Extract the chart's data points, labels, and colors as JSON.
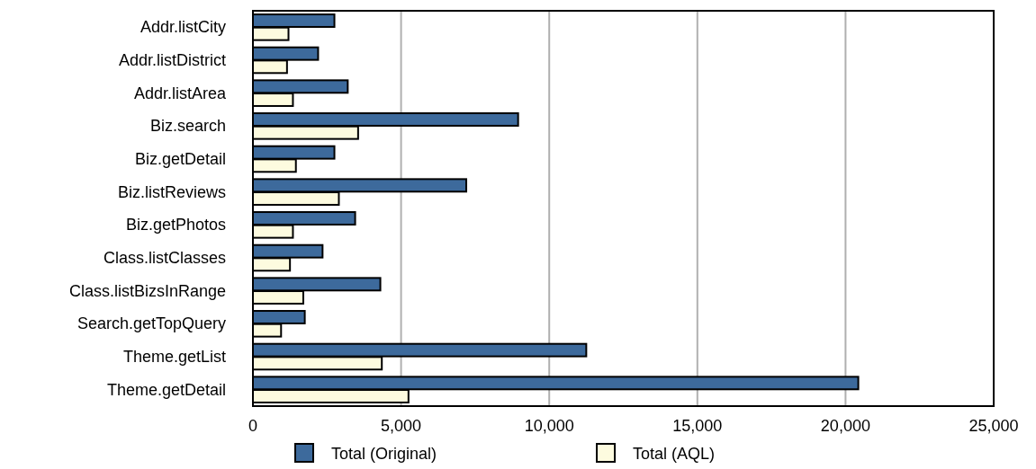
{
  "chart_data": {
    "type": "bar",
    "orientation": "horizontal",
    "categories": [
      "Addr.listCity",
      "Addr.listDistrict",
      "Addr.listArea",
      "Biz.search",
      "Biz.getDetail",
      "Biz.listReviews",
      "Biz.getPhotos",
      "Class.listClasses",
      "Class.listBizsInRange",
      "Search.getTopQuery",
      "Theme.getList",
      "Theme.getDetail"
    ],
    "series": [
      {
        "name": "Total (Original)",
        "color": "#3d6a9c",
        "values": [
          2750,
          2200,
          3200,
          8950,
          2750,
          7200,
          3450,
          2350,
          4300,
          1750,
          11250,
          20430
        ]
      },
      {
        "name": "Total (AQL)",
        "color": "#fdfbdf",
        "values": [
          1200,
          1150,
          1350,
          3550,
          1450,
          2900,
          1350,
          1250,
          1700,
          950,
          4350,
          5250
        ]
      }
    ],
    "xlim": [
      0,
      25000
    ],
    "xticks": [
      {
        "value": 0,
        "label": "0"
      },
      {
        "value": 5000,
        "label": "5,000"
      },
      {
        "value": 10000,
        "label": "10,000"
      },
      {
        "value": 15000,
        "label": "15,000"
      },
      {
        "value": 20000,
        "label": "20,000"
      },
      {
        "value": 25000,
        "label": "25,000"
      }
    ],
    "grid": "x",
    "legend": "bottom"
  }
}
